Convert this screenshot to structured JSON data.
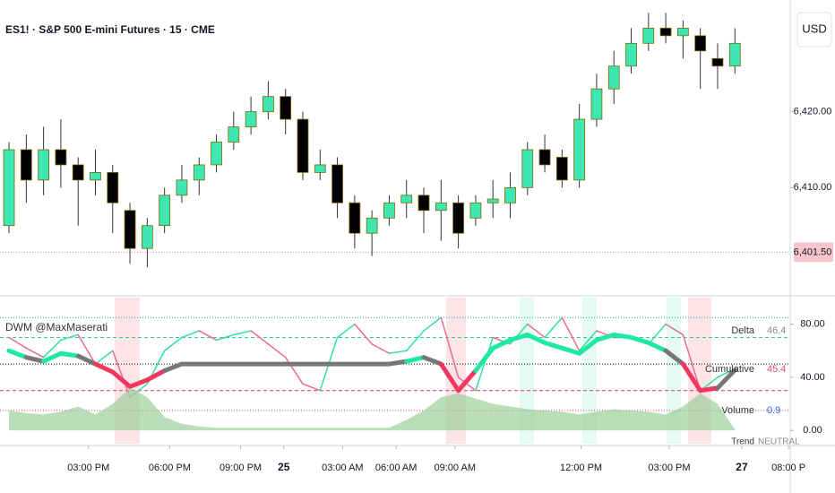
{
  "chart_data": [
    {
      "type": "candlestick",
      "title": "ES1! · S&P 500 E-mini Futures · 15 · CME",
      "currency": "USD",
      "up_color": "#3ee6b2",
      "down_color": "#000000",
      "outline": "#7a6a00",
      "ylim": [
        6396,
        6434.7
      ],
      "xlim": [
        -0.52,
        45.2
      ],
      "yticks": [
        {
          "value": 6410,
          "label": "6,410.00"
        },
        {
          "value": 6420,
          "label": "6,420.00"
        }
      ],
      "marker": {
        "value": 6401.5,
        "label": "6,401.50",
        "color": "#f23645"
      },
      "open": [
        6405,
        6415,
        6411,
        6415,
        6413,
        6411,
        6412,
        6407,
        6402,
        6405,
        6409,
        6411,
        6413,
        6416,
        6418,
        6420,
        6422,
        6419,
        6412,
        6413,
        6408,
        6404,
        6406,
        6408,
        6409,
        6407,
        6408,
        6406,
        6408,
        6408,
        6410,
        6415,
        6414,
        6411,
        6419,
        6423,
        6426,
        6429,
        6431,
        6430,
        6430,
        6427,
        6426
      ],
      "high": [
        6416,
        6417,
        6418,
        6419,
        6414,
        6415,
        6413,
        6408,
        6406,
        6410,
        6413,
        6414,
        6417,
        6420,
        6422,
        6424,
        6423,
        6420,
        6415,
        6414,
        6409,
        6407,
        6409,
        6411,
        6410,
        6411,
        6409,
        6409,
        6411,
        6412,
        6416,
        6417,
        6415,
        6421,
        6425,
        6428,
        6431,
        6433,
        6433,
        6432,
        6431,
        6429,
        6431
      ],
      "low": [
        6404,
        6408,
        6409,
        6410,
        6405,
        6409,
        6404,
        6400,
        6399.5,
        6404,
        6408,
        6409,
        6412,
        6415,
        6417,
        6419,
        6417,
        6411,
        6411,
        6406,
        6402,
        6401,
        6405,
        6406,
        6404,
        6403,
        6402,
        6405,
        6406,
        6406,
        6409,
        6412,
        6410,
        6410,
        6418,
        6421,
        6425,
        6428,
        6429,
        6427,
        6423,
        6423,
        6425
      ],
      "close": [
        6415,
        6411,
        6415,
        6413,
        6411,
        6412,
        6408,
        6402,
        6405,
        6409,
        6411,
        6413,
        6416,
        6418,
        6420,
        6422,
        6419,
        6412,
        6413,
        6408,
        6404,
        6406,
        6408,
        6409,
        6407,
        6408,
        6404,
        6408,
        6408.5,
        6410,
        6415,
        6413,
        6411,
        6419,
        6423,
        6426,
        6429,
        6431,
        6430,
        6431,
        6428,
        6426,
        6429
      ],
      "xticks": [
        {
          "value": 4.6,
          "label": "03:00 PM"
        },
        {
          "value": 9.3,
          "label": "06:00 PM"
        },
        {
          "value": 13.4,
          "label": "09:00 PM"
        },
        {
          "value": 15.9,
          "label": "25"
        },
        {
          "value": 19.3,
          "label": "03:00 AM"
        },
        {
          "value": 22.4,
          "label": "06:00 AM"
        },
        {
          "value": 25.8,
          "label": "09:00 AM"
        },
        {
          "value": 33.1,
          "label": "12:00 PM"
        },
        {
          "value": 38.2,
          "label": "03:00 PM"
        },
        {
          "value": 42.4,
          "label": "27"
        },
        {
          "value": 45.1,
          "label": "08:00 P"
        }
      ]
    },
    {
      "type": "indicator",
      "title": "DWM @MaxMaserati",
      "ylim": [
        -10,
        100
      ],
      "xlim": [
        -0.52,
        45.2
      ],
      "yticks": [
        {
          "value": 0,
          "label": "0.00"
        },
        {
          "value": 40,
          "label": "40.00"
        },
        {
          "value": 80,
          "label": "80.00"
        }
      ],
      "levels": [
        {
          "value": 85,
          "color": "#26a69a",
          "style": "dotted"
        },
        {
          "value": 70,
          "color": "#26d0a0",
          "style": "dashed"
        },
        {
          "value": 50,
          "color": "#000000",
          "style": "dotted"
        },
        {
          "value": 30,
          "color": "#e0365c",
          "style": "dashed"
        },
        {
          "value": 15,
          "color": "#e0365c",
          "style": "dotted"
        }
      ],
      "series": [
        {
          "name": "Delta",
          "kind": "line",
          "color": "#888888",
          "up_color": "#33e0a0",
          "down_color": "#f06a8a",
          "value_color": "#888888",
          "values": [
            70,
            62,
            55,
            68,
            72,
            50,
            60,
            25,
            35,
            60,
            70,
            75,
            68,
            72,
            75,
            65,
            55,
            35,
            30,
            70,
            80,
            65,
            58,
            60,
            75,
            85,
            40,
            30,
            70,
            65,
            80,
            70,
            85,
            60,
            75,
            70,
            70,
            65,
            80,
            72,
            30,
            40,
            46.4
          ]
        },
        {
          "name": "Cumulative",
          "kind": "thick",
          "color": "#777777",
          "up_color": "#1de9a0",
          "down_color": "#f0385e",
          "value_color": "#e05070",
          "values": [
            60,
            55,
            52,
            58,
            56,
            50,
            44,
            33,
            38,
            45,
            50,
            50,
            50,
            50,
            50,
            50,
            50,
            50,
            50,
            50,
            50,
            50,
            50,
            52,
            55,
            50,
            30,
            45,
            62,
            68,
            72,
            66,
            62,
            58,
            68,
            72,
            70,
            66,
            60,
            50,
            30,
            32,
            45.4
          ]
        },
        {
          "name": "Volume",
          "kind": "area",
          "color": "#9ccf9c",
          "down_color": "#f49aa4",
          "value_color": "#2962ff",
          "values": [
            15,
            13,
            12,
            14,
            18,
            12,
            20,
            32,
            25,
            10,
            5,
            3,
            2,
            2,
            2,
            2,
            2,
            2,
            2,
            2,
            2,
            2,
            2,
            8,
            15,
            25,
            28,
            24,
            20,
            18,
            16,
            15,
            14,
            12,
            14,
            16,
            15,
            14,
            12,
            18,
            28,
            20,
            0.9
          ]
        }
      ],
      "trend_label": "Trend",
      "trend": "NEUTRAL"
    }
  ]
}
